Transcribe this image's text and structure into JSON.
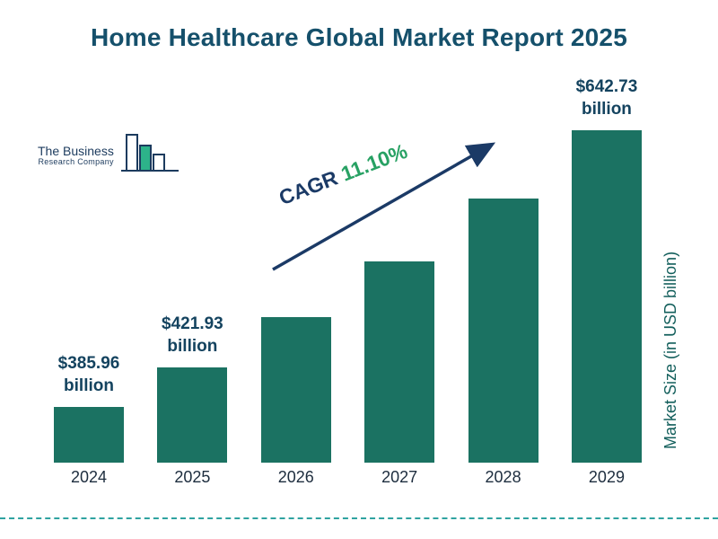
{
  "title": "Home Healthcare Global Market Report 2025",
  "logo": {
    "line1": "The Business",
    "line2": "Research Company"
  },
  "cagr": {
    "prefix": "CAGR",
    "value": "11.10%"
  },
  "y_axis_label": "Market Size (in USD billion)",
  "colors": {
    "bar": "#1B7262",
    "title": "#15506B",
    "value_label": "#14435F",
    "cagr_green": "#27A163",
    "arrow_navy": "#1B3A66",
    "dashed_teal": "#2FA3A0"
  },
  "chart_data": {
    "type": "bar",
    "title": "Home Healthcare Global Market Report 2025",
    "categories": [
      "2024",
      "2025",
      "2026",
      "2027",
      "2028",
      "2029"
    ],
    "values": [
      385.96,
      421.93,
      468.76,
      520.8,
      578.61,
      642.73
    ],
    "labeled_values": {
      "2024": {
        "amount": "$385.96",
        "unit": "billion"
      },
      "2025": {
        "amount": "$421.93",
        "unit": "billion"
      },
      "2029": {
        "amount": "$642.73",
        "unit": "billion"
      }
    },
    "annotation": "CAGR 11.10%",
    "xlabel": "",
    "ylabel": "Market Size (in USD billion)",
    "ylim": [
      334,
      660
    ],
    "grid": false,
    "legend": false
  }
}
